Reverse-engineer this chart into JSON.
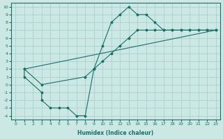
{
  "xlabel": "Humidex (Indice chaleur)",
  "bg_color": "#cce8e5",
  "grid_color": "#aacfcc",
  "line_color": "#1a6e68",
  "xlim": [
    -0.5,
    23.5
  ],
  "ylim": [
    -4.5,
    10.5
  ],
  "xticks": [
    0,
    1,
    2,
    3,
    4,
    5,
    6,
    7,
    8,
    9,
    10,
    11,
    12,
    13,
    14,
    15,
    16,
    17,
    18,
    19,
    20,
    21,
    22,
    23
  ],
  "yticks": [
    -4,
    -3,
    -2,
    -1,
    0,
    1,
    2,
    3,
    4,
    5,
    6,
    7,
    8,
    9,
    10
  ],
  "line1_x": [
    1,
    1,
    3,
    3,
    4,
    5,
    6,
    7,
    8,
    9,
    10,
    11,
    12,
    13,
    14,
    15,
    16,
    17,
    18,
    19,
    20,
    21,
    22,
    23
  ],
  "line1_y": [
    2,
    1,
    -1,
    -2,
    -3,
    -3,
    -3,
    -4,
    -4,
    2,
    5,
    8,
    9,
    10,
    9,
    9,
    8,
    7,
    7,
    7,
    7,
    7,
    7,
    7
  ],
  "line2_x": [
    1,
    23
  ],
  "line2_y": [
    2,
    7
  ],
  "line3_x": [
    1,
    3,
    8,
    9,
    10,
    11,
    12,
    13,
    14,
    15,
    16,
    17,
    18,
    19,
    20,
    21,
    22,
    23
  ],
  "line3_y": [
    2,
    0,
    1,
    2,
    3,
    4,
    5,
    6,
    7,
    7,
    7,
    7,
    7,
    7,
    7,
    7,
    7,
    7
  ]
}
